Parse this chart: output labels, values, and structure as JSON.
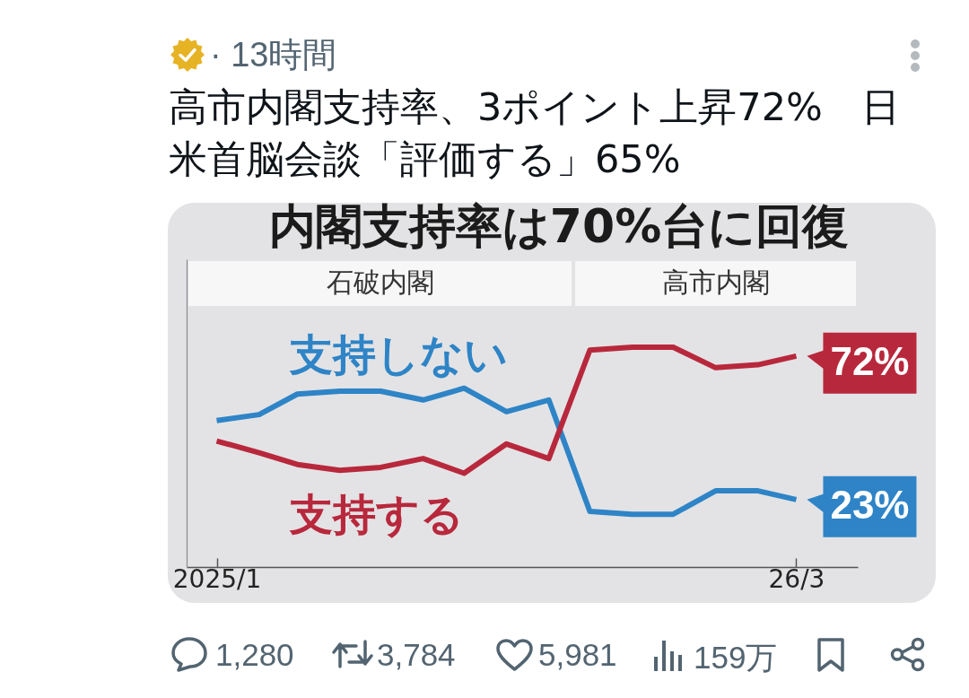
{
  "chart_data": {
    "type": "line",
    "title": "内閣支持率は70%台に回復",
    "x": [
      "2025-01",
      "2025-02",
      "2025-03",
      "2025-04",
      "2025-05",
      "2025-06",
      "2025-07",
      "2025-08",
      "2025-09",
      "2025-10",
      "2025-11",
      "2025-12",
      "2026-01",
      "2026-02",
      "2026-03"
    ],
    "series": [
      {
        "name": "支持しない",
        "color": "#2e84c6",
        "values": [
          50,
          52,
          59,
          60,
          60,
          57,
          61,
          53,
          57,
          19,
          18,
          18,
          26,
          26,
          23
        ],
        "value_labels": [
          null,
          null,
          null,
          null,
          null,
          null,
          null,
          null,
          null,
          null,
          null,
          null,
          null,
          null,
          "23%"
        ]
      },
      {
        "name": "支持する",
        "color": "#b8283c",
        "values": [
          43,
          39,
          35,
          33,
          34,
          37,
          32,
          42,
          37,
          74,
          75,
          75,
          68,
          69,
          72
        ],
        "value_labels": [
          null,
          null,
          null,
          null,
          null,
          null,
          null,
          null,
          null,
          null,
          null,
          null,
          null,
          null,
          "72%"
        ]
      }
    ],
    "xlim": [
      "2024-12-10",
      "2026-04-15"
    ],
    "xticks": [
      {
        "value": "2025-01",
        "label": "2025/1"
      },
      {
        "value": "2026-03",
        "label": "26/3"
      }
    ],
    "ylim": [
      0,
      105
    ],
    "tick_labels": "x",
    "line_style": "solid",
    "bands": [
      {
        "axis": "x",
        "from": "2024-12-10",
        "to": "2025-09-19",
        "label": "石破内閣",
        "color": "#f7f7f7"
      },
      {
        "axis": "x",
        "from": "2025-09-19",
        "to": "2026-04-15",
        "label": "高市内閣",
        "color": "#f7f7f7"
      }
    ],
    "annotations": [
      "· 13時間",
      "高市内閣支持率、3ポイント上昇72%　日米首脳会談「評価する」65%",
      "1,280",
      "3,784",
      "5,981",
      "159万"
    ]
  }
}
